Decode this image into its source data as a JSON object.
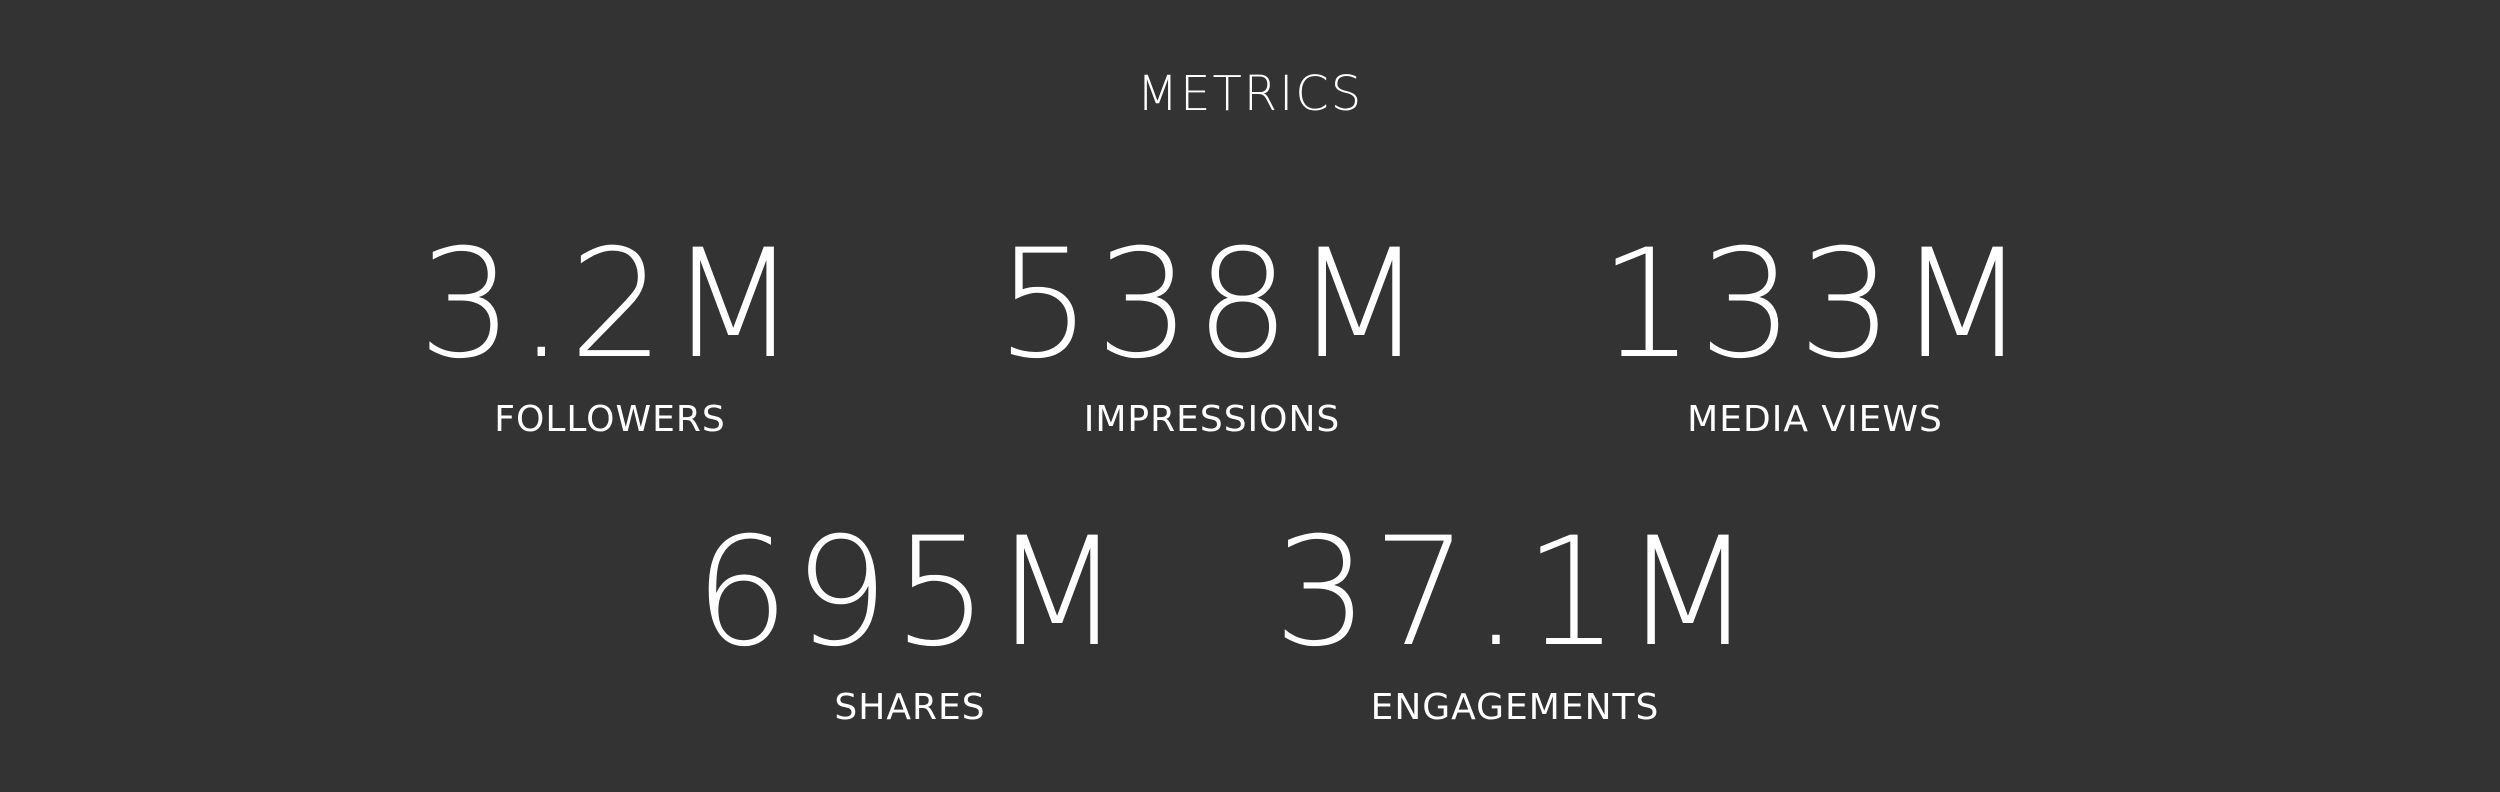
{
  "page": {
    "title": "METRICS"
  },
  "metrics": [
    {
      "value": "3.2M",
      "label": "FOLLOWERS"
    },
    {
      "value": "538M",
      "label": "IMPRESSIONS"
    },
    {
      "value": "133M",
      "label": "MEDIA VIEWS"
    },
    {
      "value": "695M",
      "label": "SHARES"
    },
    {
      "value": "37.1M",
      "label": "ENGAGEMENTS"
    }
  ],
  "colors": {
    "background": "#333333",
    "text": "#ffffff"
  }
}
